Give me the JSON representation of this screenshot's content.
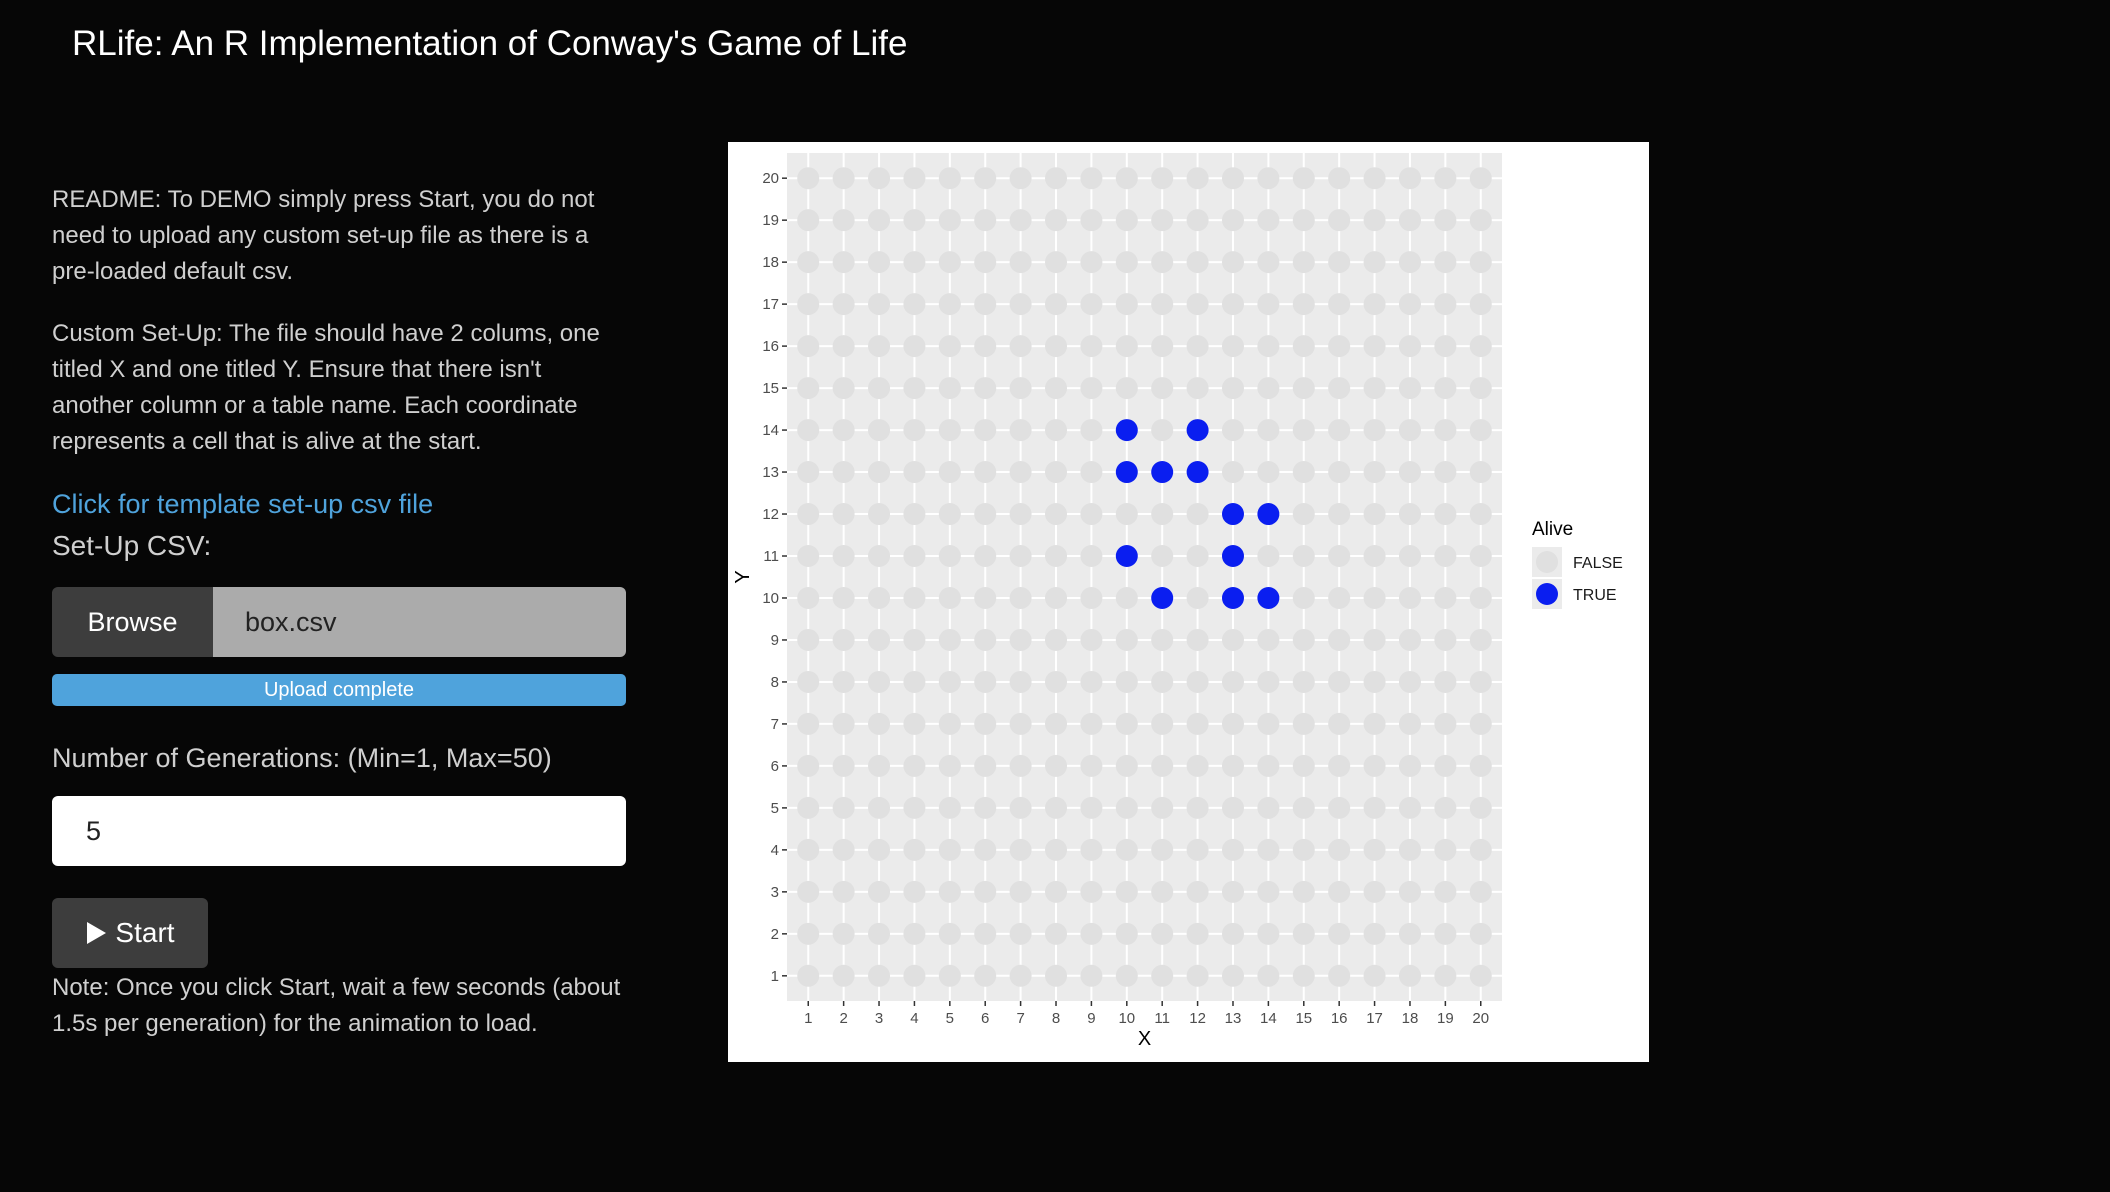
{
  "app": {
    "title": "RLife: An R Implementation of Conway's Game of Life"
  },
  "sidebar": {
    "readme": "README: To DEMO simply press Start, you do not need to upload any custom set-up file as there is a pre-loaded default csv.",
    "custom_setup": "Custom Set-Up: The file should have 2 colums, one titled X and one titled Y. Ensure that there isn't another column or a table name. Each coordinate represents a cell that is alive at the start.",
    "template_link": "Click for template set-up csv file",
    "setup_label": "Set-Up CSV:",
    "browse_label": "Browse",
    "file_name": "box.csv",
    "upload_status": "Upload complete",
    "upload_progress": 1.0,
    "generations_label": "Number of Generations: (Min=1, Max=50)",
    "generations_value": "5",
    "start_label": "Start",
    "start_icon": "play-icon",
    "note": "Note: Once you click Start, wait a few seconds (about 1.5s per generation) for the animation to load."
  },
  "chart_data": {
    "type": "scatter",
    "xlabel": "X",
    "ylabel": "Y",
    "xlim": [
      1,
      20
    ],
    "ylim": [
      1,
      20
    ],
    "x_ticks": [
      1,
      2,
      3,
      4,
      5,
      6,
      7,
      8,
      9,
      10,
      11,
      12,
      13,
      14,
      15,
      16,
      17,
      18,
      19,
      20
    ],
    "y_ticks": [
      1,
      2,
      3,
      4,
      5,
      6,
      7,
      8,
      9,
      10,
      11,
      12,
      13,
      14,
      15,
      16,
      17,
      18,
      19,
      20
    ],
    "grid": true,
    "legend": {
      "title": "Alive",
      "placement": "right",
      "entries": [
        {
          "label": "FALSE",
          "color": "#e0e0e0"
        },
        {
          "label": "TRUE",
          "color": "#0a1ef0"
        }
      ]
    },
    "alive_cells": [
      {
        "x": 10,
        "y": 14
      },
      {
        "x": 12,
        "y": 14
      },
      {
        "x": 10,
        "y": 13
      },
      {
        "x": 11,
        "y": 13
      },
      {
        "x": 12,
        "y": 13
      },
      {
        "x": 13,
        "y": 12
      },
      {
        "x": 14,
        "y": 12
      },
      {
        "x": 10,
        "y": 11
      },
      {
        "x": 13,
        "y": 11
      },
      {
        "x": 11,
        "y": 10
      },
      {
        "x": 13,
        "y": 10
      },
      {
        "x": 14,
        "y": 10
      }
    ],
    "colors": {
      "panel": "#ebebeb",
      "dead": "#e0e0e0",
      "alive": "#0a1ef0"
    }
  }
}
